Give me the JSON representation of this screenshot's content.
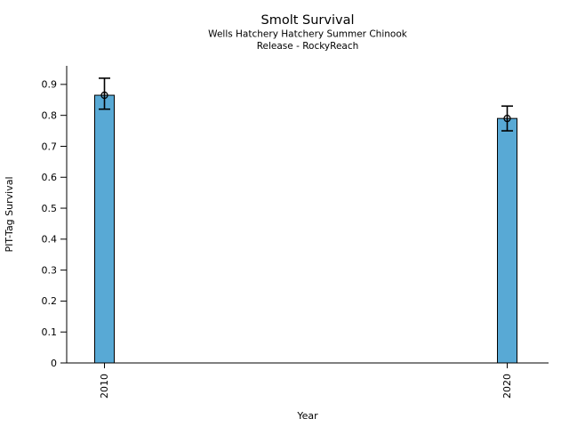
{
  "chart_data": {
    "type": "bar",
    "title": "Smolt Survival",
    "subtitle1": "Wells Hatchery Hatchery Summer Chinook",
    "subtitle2": "Release - RockyReach",
    "xlabel": "Year",
    "ylabel": "PIT-Tag Survival",
    "categories": [
      "2010",
      "2020"
    ],
    "values": [
      0.865,
      0.79
    ],
    "error_bars": {
      "low": [
        0.82,
        0.75
      ],
      "high": [
        0.92,
        0.83
      ]
    },
    "yticks": [
      0,
      0.1,
      0.2,
      0.3,
      0.4,
      0.5,
      0.6,
      0.7,
      0.8,
      0.9
    ],
    "ytick_labels": [
      "0",
      "0.1",
      "0.2",
      "0.3",
      "0.4",
      "0.5",
      "0.6",
      "0.7",
      "0.8",
      "0.9"
    ],
    "ylim": [
      0,
      0.96
    ],
    "grid": false,
    "legend": null,
    "xtick_rotation_deg": 90,
    "bar_color": "#58a9d5",
    "bar_edge_color": "#000000",
    "error_color": "#000000",
    "marker": "open-circle",
    "text_color": "#000000"
  }
}
